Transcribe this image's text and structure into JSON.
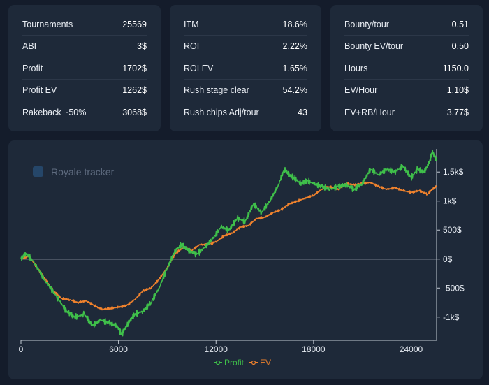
{
  "stats": {
    "card1": [
      {
        "label": "Tournaments",
        "value": "25569"
      },
      {
        "label": "ABI",
        "value": "3$"
      },
      {
        "label": "Profit",
        "value": "1702$"
      },
      {
        "label": "Profit EV",
        "value": "1262$"
      },
      {
        "label": "Rakeback ~50%",
        "value": "3068$"
      }
    ],
    "card2": [
      {
        "label": "ITM",
        "value": "18.6%"
      },
      {
        "label": "ROI",
        "value": "2.22%"
      },
      {
        "label": "ROI EV",
        "value": "1.65%"
      },
      {
        "label": "Rush stage clear",
        "value": "54.2%"
      },
      {
        "label": "Rush chips Adj/tour",
        "value": "43"
      }
    ],
    "card3": [
      {
        "label": "Bounty/tour",
        "value": "0.51"
      },
      {
        "label": "Bounty EV/tour",
        "value": "0.50"
      },
      {
        "label": "Hours",
        "value": "1150.0"
      },
      {
        "label": "EV/Hour",
        "value": "1.10$"
      },
      {
        "label": "EV+RB/Hour",
        "value": "3.77$"
      }
    ]
  },
  "chart_data": {
    "type": "line",
    "watermark": "Royale tracker",
    "xlim": [
      0,
      25569
    ],
    "ylim": [
      -1400,
      1900
    ],
    "x_ticks": [
      0,
      6000,
      12000,
      18000,
      24000
    ],
    "x_tick_labels": [
      "0",
      "6000",
      "12000",
      "18000",
      "24000"
    ],
    "y_ticks": [
      1500,
      1000,
      500,
      0,
      -500,
      -1000
    ],
    "y_tick_labels": [
      "1.5k$",
      "1k$",
      "500$",
      "0$",
      "-500$",
      "-1k$"
    ],
    "colors": {
      "Profit": "#3fbf4a",
      "EV": "#f0822d",
      "zero": "#c3cad4"
    },
    "series": [
      {
        "name": "Profit",
        "x": [
          0,
          300,
          800,
          1500,
          2200,
          2800,
          3300,
          3900,
          4400,
          4900,
          5400,
          5900,
          6200,
          6600,
          7000,
          7500,
          8000,
          8500,
          9000,
          9500,
          9900,
          10300,
          10800,
          11300,
          11800,
          12300,
          12800,
          13300,
          13800,
          14300,
          14800,
          15300,
          15800,
          16200,
          16500,
          16800,
          17200,
          17600,
          18000,
          18500,
          19000,
          19500,
          20000,
          20500,
          21000,
          21500,
          22000,
          22500,
          23000,
          23500,
          24000,
          24400,
          24800,
          25100,
          25300,
          25569
        ],
        "y": [
          0,
          100,
          -50,
          -380,
          -650,
          -900,
          -1000,
          -950,
          -1150,
          -1050,
          -1100,
          -1150,
          -1300,
          -1100,
          -950,
          -900,
          -750,
          -500,
          -150,
          150,
          250,
          150,
          80,
          200,
          350,
          550,
          500,
          700,
          650,
          950,
          800,
          1000,
          1250,
          1550,
          1450,
          1400,
          1300,
          1350,
          1300,
          1250,
          1200,
          1250,
          1280,
          1200,
          1300,
          1550,
          1450,
          1550,
          1500,
          1600,
          1400,
          1550,
          1500,
          1650,
          1850,
          1702
        ]
      },
      {
        "name": "EV",
        "x": [
          0,
          500,
          1000,
          1500,
          2000,
          2500,
          3000,
          3500,
          4000,
          4500,
          5000,
          5500,
          6000,
          6500,
          7000,
          7500,
          8000,
          8500,
          9000,
          9500,
          10000,
          10500,
          11000,
          11500,
          12000,
          12500,
          13000,
          13500,
          14000,
          14500,
          15000,
          15500,
          16000,
          16500,
          17000,
          17500,
          18000,
          18500,
          19000,
          19500,
          20000,
          20500,
          21000,
          21500,
          22000,
          22500,
          23000,
          23500,
          24000,
          24500,
          25000,
          25300,
          25569
        ],
        "y": [
          0,
          50,
          -150,
          -350,
          -550,
          -680,
          -700,
          -750,
          -720,
          -800,
          -870,
          -850,
          -830,
          -800,
          -700,
          -550,
          -500,
          -350,
          -150,
          100,
          200,
          150,
          250,
          250,
          300,
          400,
          450,
          550,
          580,
          700,
          720,
          800,
          850,
          950,
          1000,
          1050,
          1100,
          1200,
          1250,
          1200,
          1300,
          1280,
          1300,
          1320,
          1250,
          1200,
          1230,
          1180,
          1150,
          1180,
          1120,
          1200,
          1262
        ]
      }
    ]
  }
}
